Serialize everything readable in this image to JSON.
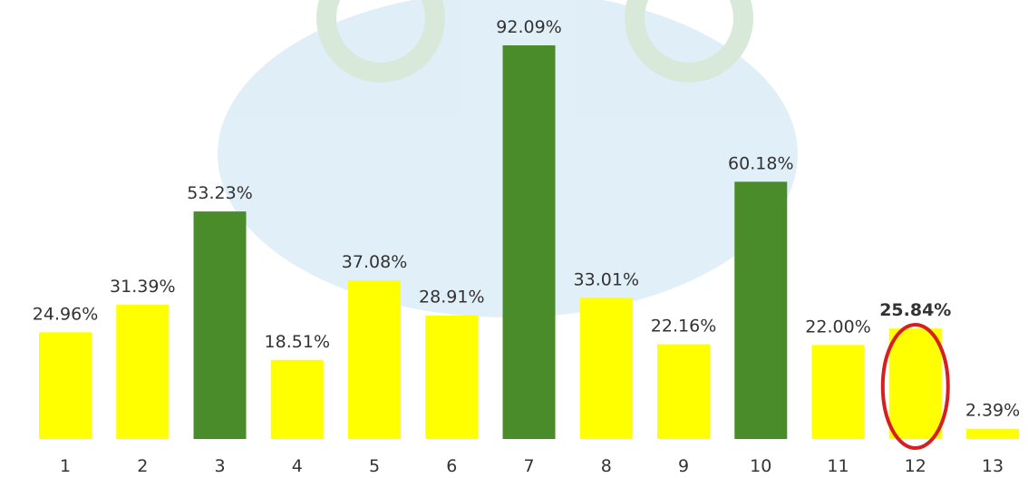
{
  "chart_data": {
    "type": "bar",
    "categories": [
      "1",
      "2",
      "3",
      "4",
      "5",
      "6",
      "7",
      "8",
      "9",
      "10",
      "11",
      "12",
      "13"
    ],
    "values": [
      24.96,
      31.39,
      53.23,
      18.51,
      37.08,
      28.91,
      92.09,
      33.01,
      22.16,
      60.18,
      22,
      25.84,
      2.39
    ],
    "value_labels": [
      "24.96%",
      "31.39%",
      "53.23%",
      "18.51%",
      "37.08%",
      "28.91%",
      "92.09%",
      "33.01%",
      "22.16%",
      "60.18%",
      "22.00%",
      "25.84%",
      "2.39%"
    ],
    "colors": [
      "#ffff00",
      "#ffff00",
      "#4a8c2a",
      "#ffff00",
      "#ffff00",
      "#ffff00",
      "#4a8c2a",
      "#ffff00",
      "#ffff00",
      "#4a8c2a",
      "#ffff00",
      "#ffff00",
      "#ffff00"
    ],
    "highlight": 11
  }
}
